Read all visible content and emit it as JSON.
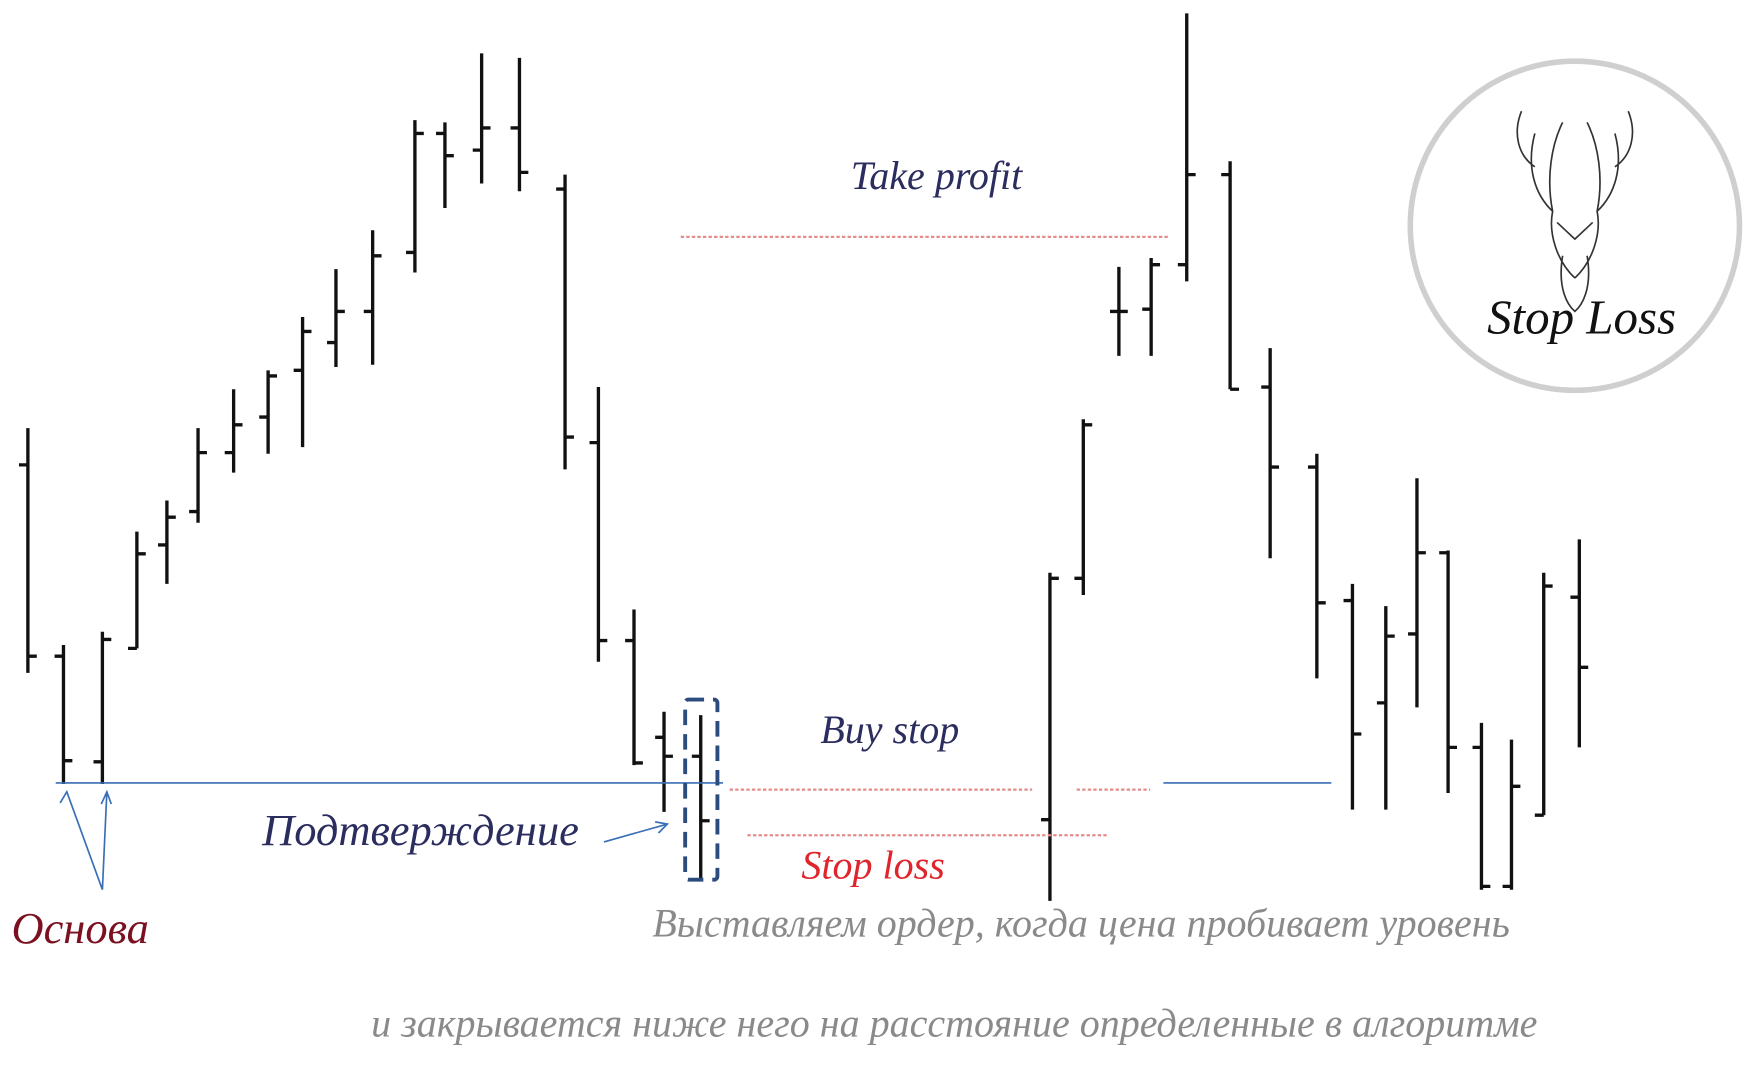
{
  "labels": {
    "take_profit": "Take profit",
    "buy_stop": "Buy stop",
    "stop_loss": "Stop loss",
    "confirmation": "Подтверждение",
    "base": "Основа",
    "logo": "Stop Loss"
  },
  "caption": {
    "line1": "Выставляем ордер, когда цена пробивает уровень",
    "line2": "и закрывается ниже него на расстояние определенные в алгоритме"
  }
}
